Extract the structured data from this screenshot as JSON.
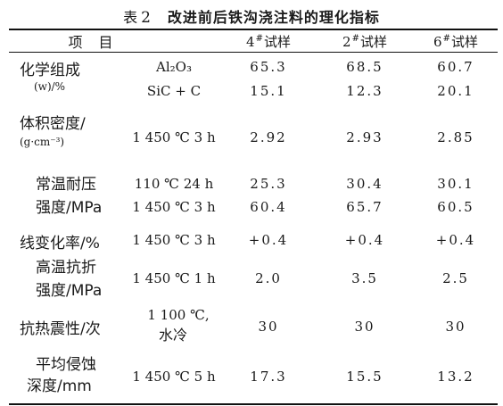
{
  "table": {
    "caption_prefix": "表",
    "caption_number": "2",
    "caption_text": "改进前后铁沟浇注料的理化指标",
    "headers": {
      "item": "项　目",
      "s4_num": "4",
      "s2_num": "2",
      "s6_num": "6",
      "mark": "#",
      "sample_word": "试样"
    },
    "rows": {
      "chem": {
        "label1": "化学组成",
        "label2": "(w)/%",
        "lines": [
          {
            "cond": "Al₂O₃",
            "v4": "65.3",
            "v2": "68.5",
            "v6": "60.7"
          },
          {
            "cond": "SiC + C",
            "v4": "15.1",
            "v2": "12.3",
            "v6": "20.1"
          }
        ]
      },
      "density": {
        "label1": "体积密度/",
        "label2": "(g·cm⁻³)",
        "lines": [
          {
            "cond": "1 450 ℃ 3 h",
            "v4": "2.92",
            "v2": "2.93",
            "v6": "2.85"
          }
        ]
      },
      "ccs": {
        "label1": "常温耐压",
        "label2": "强度/MPa",
        "lines": [
          {
            "cond": "110 ℃ 24 h",
            "v4": "25.3",
            "v2": "30.4",
            "v6": "30.1"
          },
          {
            "cond": "1 450 ℃ 3 h",
            "v4": "60.4",
            "v2": "65.7",
            "v6": "60.5"
          }
        ]
      },
      "plc": {
        "label1": "线变化率/%",
        "lines": [
          {
            "cond": "1 450 ℃ 3 h",
            "v4": "+0.4",
            "v2": "+0.4",
            "v6": "+0.4"
          }
        ]
      },
      "hmor": {
        "label1": "高温抗折",
        "label2": "强度/MPa",
        "lines": [
          {
            "cond": "1 450 ℃ 1 h",
            "v4": "2.0",
            "v2": "3.5",
            "v6": "2.5"
          }
        ]
      },
      "tsr": {
        "label1": "抗热震性/次",
        "cond1": "1 100 ℃,",
        "cond2": "水冷",
        "v4": "30",
        "v2": "30",
        "v6": "30"
      },
      "erosion": {
        "label1": "平均侵蚀",
        "label2": "深度/mm",
        "lines": [
          {
            "cond": "1 450 ℃ 5 h",
            "v4": "17.3",
            "v2": "15.5",
            "v6": "13.2"
          }
        ]
      }
    }
  }
}
